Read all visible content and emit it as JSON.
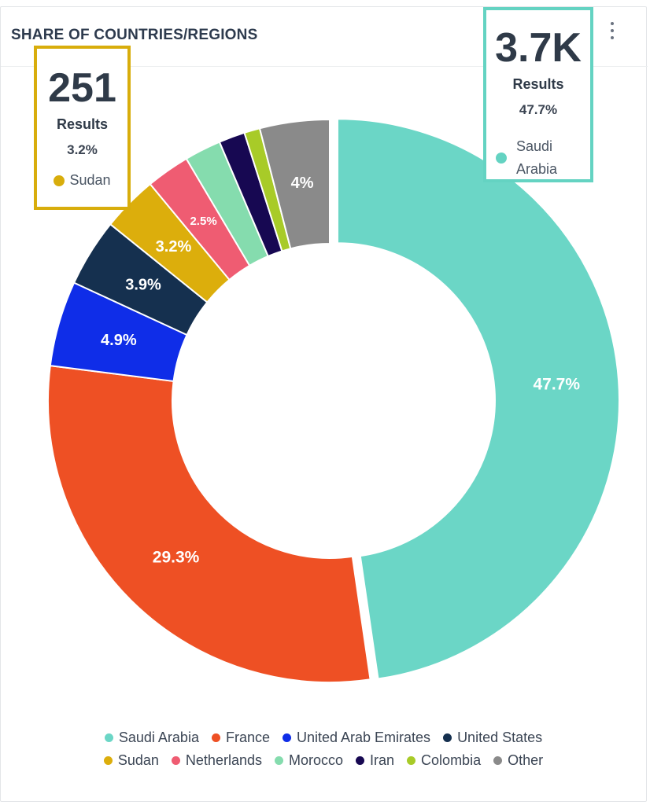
{
  "title": "SHARE OF COUNTRIES/REGIONS",
  "callouts": {
    "sudan": {
      "value": "251",
      "unit": "Results",
      "percent": "3.2%",
      "name": "Sudan",
      "color": "#d8ad0c"
    },
    "saudi": {
      "value": "3.7K",
      "unit": "Results",
      "percent": "47.7%",
      "name": "Saudi Arabia",
      "color": "#64d3c2"
    }
  },
  "chart_data": {
    "type": "pie",
    "donut": true,
    "title": "SHARE OF COUNTRIES/REGIONS",
    "series": [
      {
        "name": "Saudi Arabia",
        "value": 47.7,
        "label": "47.7%",
        "color": "#6bd6c6"
      },
      {
        "name": "France",
        "value": 29.3,
        "label": "29.3%",
        "color": "#ee5024"
      },
      {
        "name": "United Arab Emirates",
        "value": 4.9,
        "label": "4.9%",
        "color": "#0f2de8"
      },
      {
        "name": "United States",
        "value": 3.9,
        "label": "3.9%",
        "color": "#15304f"
      },
      {
        "name": "Sudan",
        "value": 3.2,
        "label": "3.2%",
        "color": "#dcae0c"
      },
      {
        "name": "Netherlands",
        "value": 2.5,
        "label": "2.5%",
        "color": "#ef5c72"
      },
      {
        "name": "Morocco",
        "value": 2.1,
        "label": "",
        "color": "#85dcae"
      },
      {
        "name": "Iran",
        "value": 1.5,
        "label": "",
        "color": "#170852"
      },
      {
        "name": "Colombia",
        "value": 0.9,
        "label": "",
        "color": "#a8cb28"
      },
      {
        "name": "Other",
        "value": 4.0,
        "label": "4%",
        "color": "#8a8a8a"
      }
    ],
    "exploded": [
      "Saudi Arabia"
    ],
    "legend_position": "bottom"
  }
}
